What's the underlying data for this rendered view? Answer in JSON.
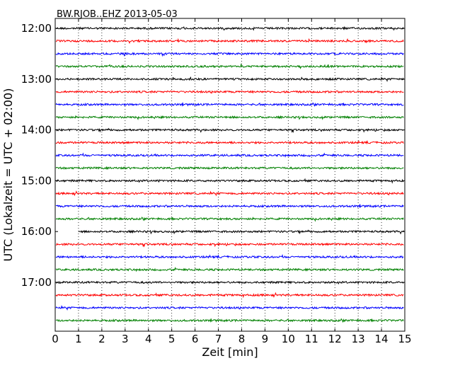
{
  "chart_data": {
    "type": "line",
    "title": "BW.RJOB..EHZ 2013-05-03",
    "xlabel": "Zeit  [min]",
    "ylabel": "UTC (Lokalzeit = UTC + 02:00)",
    "xlim": [
      0,
      15
    ],
    "x_ticks": [
      0,
      1,
      2,
      3,
      4,
      5,
      6,
      7,
      8,
      9,
      10,
      11,
      12,
      13,
      14,
      15
    ],
    "x_tick_labels": [
      "0",
      "1",
      "2",
      "3",
      "4",
      "5",
      "6",
      "7",
      "8",
      "9",
      "10",
      "11",
      "12",
      "13",
      "14",
      "15"
    ],
    "y_tick_labels": [
      "12:00",
      "13:00",
      "14:00",
      "15:00",
      "16:00",
      "17:00"
    ],
    "vertical_grid": "dotted",
    "color_cycle": [
      "#000000",
      "#ff0000",
      "#0000ff",
      "#008000"
    ],
    "traces": [
      "12:00",
      "12:15",
      "12:30",
      "12:45",
      "13:00",
      "13:15",
      "13:30",
      "13:45",
      "14:00",
      "14:15",
      "14:30",
      "14:45",
      "15:00",
      "15:15",
      "15:30",
      "15:45",
      "16:00",
      "16:15",
      "16:30",
      "16:45",
      "17:00",
      "17:15",
      "17:30",
      "17:45"
    ]
  }
}
